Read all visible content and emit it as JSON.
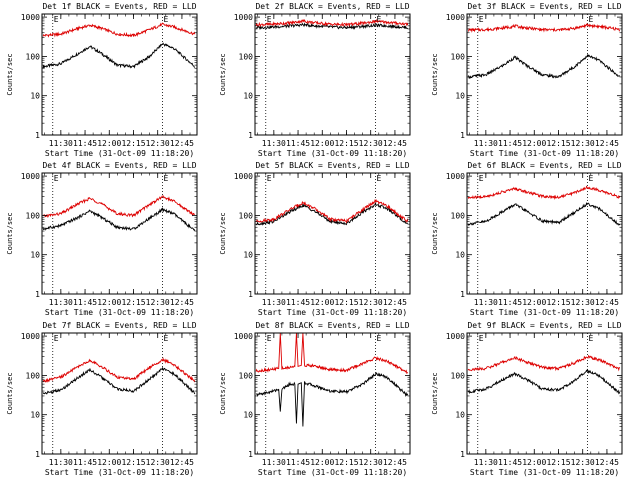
{
  "figure": {
    "colors": {
      "events": "#000000",
      "lld": "#dd0000",
      "background": "#ffffff"
    }
  },
  "chart_data": [
    {
      "type": "line",
      "title": "Det 1f BLACK = Events, RED = LLD",
      "ylabel": "Counts/sec",
      "xlabel": "Start Time (31-Oct-09 11:18:20)",
      "yscale": "log",
      "ylim": [
        1,
        1200
      ],
      "xlim": [
        11.3056,
        12.9056
      ],
      "xtick_labels": [
        "11:30",
        "11:45",
        "12:00",
        "12:15",
        "12:30",
        "12:45"
      ],
      "ytick_labels": [
        "1",
        "10",
        "100",
        "1000"
      ],
      "markers": [
        {
          "label": "E",
          "x": "11:25"
        },
        {
          "label": "E",
          "x": "12:33"
        }
      ],
      "series": [
        {
          "name": "Events",
          "x": [
            "11:19",
            "11:30",
            "11:41",
            "11:48",
            "11:55",
            "12:05",
            "12:15",
            "12:25",
            "12:33",
            "12:40",
            "12:53"
          ],
          "y": [
            55,
            65,
            120,
            180,
            120,
            60,
            55,
            100,
            210,
            160,
            55
          ]
        },
        {
          "name": "LLD",
          "x": [
            "11:19",
            "11:30",
            "11:41",
            "11:48",
            "11:55",
            "12:05",
            "12:15",
            "12:25",
            "12:33",
            "12:40",
            "12:53"
          ],
          "y": [
            340,
            370,
            520,
            620,
            520,
            370,
            340,
            480,
            650,
            560,
            370
          ]
        }
      ]
    },
    {
      "type": "line",
      "title": "Det 2f BLACK = Events, RED = LLD",
      "ylabel": "Counts/sec",
      "xlabel": "Start Time (31-Oct-09 11:18:20)",
      "yscale": "log",
      "ylim": [
        1,
        1200
      ],
      "xlim": [
        11.3056,
        12.9056
      ],
      "xtick_labels": [
        "11:30",
        "11:45",
        "12:00",
        "12:15",
        "12:30",
        "12:45"
      ],
      "ytick_labels": [
        "1",
        "10",
        "100",
        "1000"
      ],
      "markers": [
        {
          "label": "E",
          "x": "11:25"
        },
        {
          "label": "E",
          "x": "12:33"
        }
      ],
      "series": [
        {
          "name": "Events",
          "x": [
            "11:19",
            "11:30",
            "11:41",
            "11:48",
            "11:55",
            "12:05",
            "12:15",
            "12:25",
            "12:33",
            "12:40",
            "12:53"
          ],
          "y": [
            540,
            560,
            600,
            640,
            600,
            560,
            540,
            580,
            620,
            600,
            540
          ]
        },
        {
          "name": "LLD",
          "x": [
            "11:19",
            "11:30",
            "11:41",
            "11:48",
            "11:55",
            "12:05",
            "12:15",
            "12:25",
            "12:33",
            "12:40",
            "12:53"
          ],
          "y": [
            640,
            660,
            720,
            800,
            720,
            660,
            640,
            700,
            780,
            740,
            660
          ]
        }
      ]
    },
    {
      "type": "line",
      "title": "Det 3f BLACK = Events, RED = LLD",
      "ylabel": "Counts/sec",
      "xlabel": "Start Time (31-Oct-09 11:18:20)",
      "yscale": "log",
      "ylim": [
        1,
        1200
      ],
      "xlim": [
        11.3056,
        12.9056
      ],
      "xtick_labels": [
        "11:30",
        "11:45",
        "12:00",
        "12:15",
        "12:30",
        "12:45"
      ],
      "ytick_labels": [
        "1",
        "10",
        "100",
        "1000"
      ],
      "markers": [
        {
          "label": "E",
          "x": "11:25"
        },
        {
          "label": "E",
          "x": "12:33"
        }
      ],
      "series": [
        {
          "name": "Events",
          "x": [
            "11:19",
            "11:30",
            "11:41",
            "11:48",
            "11:55",
            "12:05",
            "12:15",
            "12:25",
            "12:33",
            "12:40",
            "12:53"
          ],
          "y": [
            30,
            34,
            60,
            95,
            60,
            34,
            30,
            55,
            105,
            80,
            30
          ]
        },
        {
          "name": "LLD",
          "x": [
            "11:19",
            "11:30",
            "11:41",
            "11:48",
            "11:55",
            "12:05",
            "12:15",
            "12:25",
            "12:33",
            "12:40",
            "12:53"
          ],
          "y": [
            470,
            480,
            530,
            590,
            530,
            480,
            470,
            520,
            620,
            580,
            480
          ]
        }
      ]
    },
    {
      "type": "line",
      "title": "Det 4f BLACK = Events, RED = LLD",
      "ylabel": "Counts/sec",
      "xlabel": "Start Time (31-Oct-09 11:18:20)",
      "yscale": "log",
      "ylim": [
        1,
        1200
      ],
      "xlim": [
        11.3056,
        12.9056
      ],
      "xtick_labels": [
        "11:30",
        "11:45",
        "12:00",
        "12:15",
        "12:30",
        "12:45"
      ],
      "ytick_labels": [
        "1",
        "10",
        "100",
        "1000"
      ],
      "markers": [
        {
          "label": "E",
          "x": "11:25"
        },
        {
          "label": "E",
          "x": "12:33"
        }
      ],
      "series": [
        {
          "name": "Events",
          "x": [
            "11:19",
            "11:30",
            "11:41",
            "11:48",
            "11:55",
            "12:05",
            "12:15",
            "12:25",
            "12:33",
            "12:40",
            "12:53"
          ],
          "y": [
            45,
            55,
            90,
            130,
            90,
            50,
            45,
            85,
            140,
            110,
            40
          ]
        },
        {
          "name": "LLD",
          "x": [
            "11:19",
            "11:30",
            "11:41",
            "11:48",
            "11:55",
            "12:05",
            "12:15",
            "12:25",
            "12:33",
            "12:40",
            "12:53"
          ],
          "y": [
            95,
            110,
            200,
            270,
            200,
            110,
            100,
            190,
            300,
            230,
            100
          ]
        }
      ]
    },
    {
      "type": "line",
      "title": "Det 5f BLACK = Events, RED = LLD",
      "ylabel": "Counts/sec",
      "xlabel": "Start Time (31-Oct-09 11:18:20)",
      "yscale": "log",
      "ylim": [
        1,
        1200
      ],
      "xlim": [
        11.3056,
        12.9056
      ],
      "xtick_labels": [
        "11:30",
        "11:45",
        "12:00",
        "12:15",
        "12:30",
        "12:45"
      ],
      "ytick_labels": [
        "1",
        "10",
        "100",
        "1000"
      ],
      "markers": [
        {
          "label": "E",
          "x": "11:25"
        },
        {
          "label": "E",
          "x": "12:33"
        }
      ],
      "series": [
        {
          "name": "Events",
          "x": [
            "11:19",
            "11:30",
            "11:41",
            "11:48",
            "11:55",
            "12:05",
            "12:15",
            "12:25",
            "12:33",
            "12:40",
            "12:53"
          ],
          "y": [
            60,
            70,
            130,
            180,
            130,
            70,
            62,
            120,
            190,
            150,
            60
          ]
        },
        {
          "name": "LLD",
          "x": [
            "11:19",
            "11:30",
            "11:41",
            "11:48",
            "11:55",
            "12:05",
            "12:15",
            "12:25",
            "12:33",
            "12:40",
            "12:53"
          ],
          "y": [
            70,
            80,
            150,
            210,
            150,
            80,
            72,
            140,
            230,
            175,
            70
          ]
        }
      ]
    },
    {
      "type": "line",
      "title": "Det 6f BLACK = Events, RED = LLD",
      "ylabel": "Counts/sec",
      "xlabel": "Start Time (31-Oct-09 11:18:20)",
      "yscale": "log",
      "ylim": [
        1,
        1200
      ],
      "xlim": [
        11.3056,
        12.9056
      ],
      "xtick_labels": [
        "11:30",
        "11:45",
        "12:00",
        "12:15",
        "12:30",
        "12:45"
      ],
      "ytick_labels": [
        "1",
        "10",
        "100",
        "1000"
      ],
      "markers": [
        {
          "label": "E",
          "x": "11:25"
        },
        {
          "label": "E",
          "x": "12:33"
        }
      ],
      "series": [
        {
          "name": "Events",
          "x": [
            "11:19",
            "11:30",
            "11:41",
            "11:48",
            "11:55",
            "12:05",
            "12:15",
            "12:25",
            "12:33",
            "12:40",
            "12:53"
          ],
          "y": [
            60,
            70,
            130,
            190,
            130,
            72,
            65,
            120,
            200,
            150,
            55
          ]
        },
        {
          "name": "LLD",
          "x": [
            "11:19",
            "11:30",
            "11:41",
            "11:48",
            "11:55",
            "12:05",
            "12:15",
            "12:25",
            "12:33",
            "12:40",
            "12:53"
          ],
          "y": [
            280,
            300,
            400,
            480,
            400,
            310,
            290,
            380,
            520,
            440,
            290
          ]
        }
      ]
    },
    {
      "type": "line",
      "title": "Det 7f BLACK = Events, RED = LLD",
      "ylabel": "Counts/sec",
      "xlabel": "Start Time (31-Oct-09 11:18:20)",
      "yscale": "log",
      "ylim": [
        1,
        1200
      ],
      "xlim": [
        11.3056,
        12.9056
      ],
      "xtick_labels": [
        "11:30",
        "11:45",
        "12:00",
        "12:15",
        "12:30",
        "12:45"
      ],
      "ytick_labels": [
        "1",
        "10",
        "100",
        "1000"
      ],
      "markers": [
        {
          "label": "E",
          "x": "11:25"
        },
        {
          "label": "E",
          "x": "12:33"
        }
      ],
      "series": [
        {
          "name": "Events",
          "x": [
            "11:19",
            "11:30",
            "11:41",
            "11:48",
            "11:55",
            "12:05",
            "12:15",
            "12:25",
            "12:33",
            "12:40",
            "12:53"
          ],
          "y": [
            35,
            42,
            90,
            140,
            90,
            45,
            40,
            80,
            150,
            110,
            35
          ]
        },
        {
          "name": "LLD",
          "x": [
            "11:19",
            "11:30",
            "11:41",
            "11:48",
            "11:55",
            "12:05",
            "12:15",
            "12:25",
            "12:33",
            "12:40",
            "12:53"
          ],
          "y": [
            70,
            90,
            170,
            240,
            170,
            90,
            80,
            160,
            250,
            190,
            70
          ]
        }
      ]
    },
    {
      "type": "line",
      "title": "Det 8f BLACK = Events, RED = LLD",
      "ylabel": "Counts/sec",
      "xlabel": "Start Time (31-Oct-09 11:18:20)",
      "yscale": "log",
      "ylim": [
        1,
        1200
      ],
      "xlim": [
        11.3056,
        12.9056
      ],
      "xtick_labels": [
        "11:30",
        "11:45",
        "12:00",
        "12:15",
        "12:30",
        "12:45"
      ],
      "ytick_labels": [
        "1",
        "10",
        "100",
        "1000"
      ],
      "markers": [
        {
          "label": "E",
          "x": "11:25"
        },
        {
          "label": "E",
          "x": "12:33"
        }
      ],
      "series": [
        {
          "name": "Events",
          "x": [
            "11:19",
            "11:28",
            "11:33",
            "11:34",
            "11:35",
            "11:40",
            "11:43",
            "11:44",
            "11:45",
            "11:47",
            "11:48",
            "11:49",
            "11:55",
            "12:05",
            "12:15",
            "12:25",
            "12:33",
            "12:40",
            "12:53"
          ],
          "y": [
            32,
            38,
            45,
            12,
            45,
            60,
            60,
            6,
            60,
            65,
            5,
            65,
            55,
            40,
            38,
            60,
            110,
            90,
            30
          ]
        },
        {
          "name": "LLD",
          "x": [
            "11:19",
            "11:28",
            "11:33",
            "11:34",
            "11:35",
            "11:40",
            "11:43",
            "11:44",
            "11:45",
            "11:47",
            "11:48",
            "11:49",
            "11:55",
            "12:05",
            "12:15",
            "12:25",
            "12:33",
            "12:40",
            "12:53"
          ],
          "y": [
            130,
            140,
            150,
            1200,
            150,
            160,
            170,
            1200,
            170,
            180,
            1200,
            180,
            175,
            140,
            135,
            200,
            280,
            230,
            120
          ]
        }
      ]
    },
    {
      "type": "line",
      "title": "Det 9f BLACK = Events, RED = LLD",
      "ylabel": "Counts/sec",
      "xlabel": "Start Time (31-Oct-09 11:18:20)",
      "yscale": "log",
      "ylim": [
        1,
        1200
      ],
      "xlim": [
        11.3056,
        12.9056
      ],
      "xtick_labels": [
        "11:30",
        "11:45",
        "12:00",
        "12:15",
        "12:30",
        "12:45"
      ],
      "ytick_labels": [
        "1",
        "10",
        "100",
        "1000"
      ],
      "markers": [
        {
          "label": "E",
          "x": "11:25"
        },
        {
          "label": "E",
          "x": "12:33"
        }
      ],
      "series": [
        {
          "name": "Events",
          "x": [
            "11:19",
            "11:30",
            "11:41",
            "11:48",
            "11:55",
            "12:05",
            "12:15",
            "12:25",
            "12:33",
            "12:40",
            "12:53"
          ],
          "y": [
            38,
            45,
            80,
            110,
            80,
            45,
            42,
            75,
            130,
            100,
            35
          ]
        },
        {
          "name": "LLD",
          "x": [
            "11:19",
            "11:30",
            "11:41",
            "11:48",
            "11:55",
            "12:05",
            "12:15",
            "12:25",
            "12:33",
            "12:40",
            "12:53"
          ],
          "y": [
            140,
            150,
            220,
            280,
            220,
            160,
            150,
            210,
            300,
            250,
            145
          ]
        }
      ]
    }
  ]
}
